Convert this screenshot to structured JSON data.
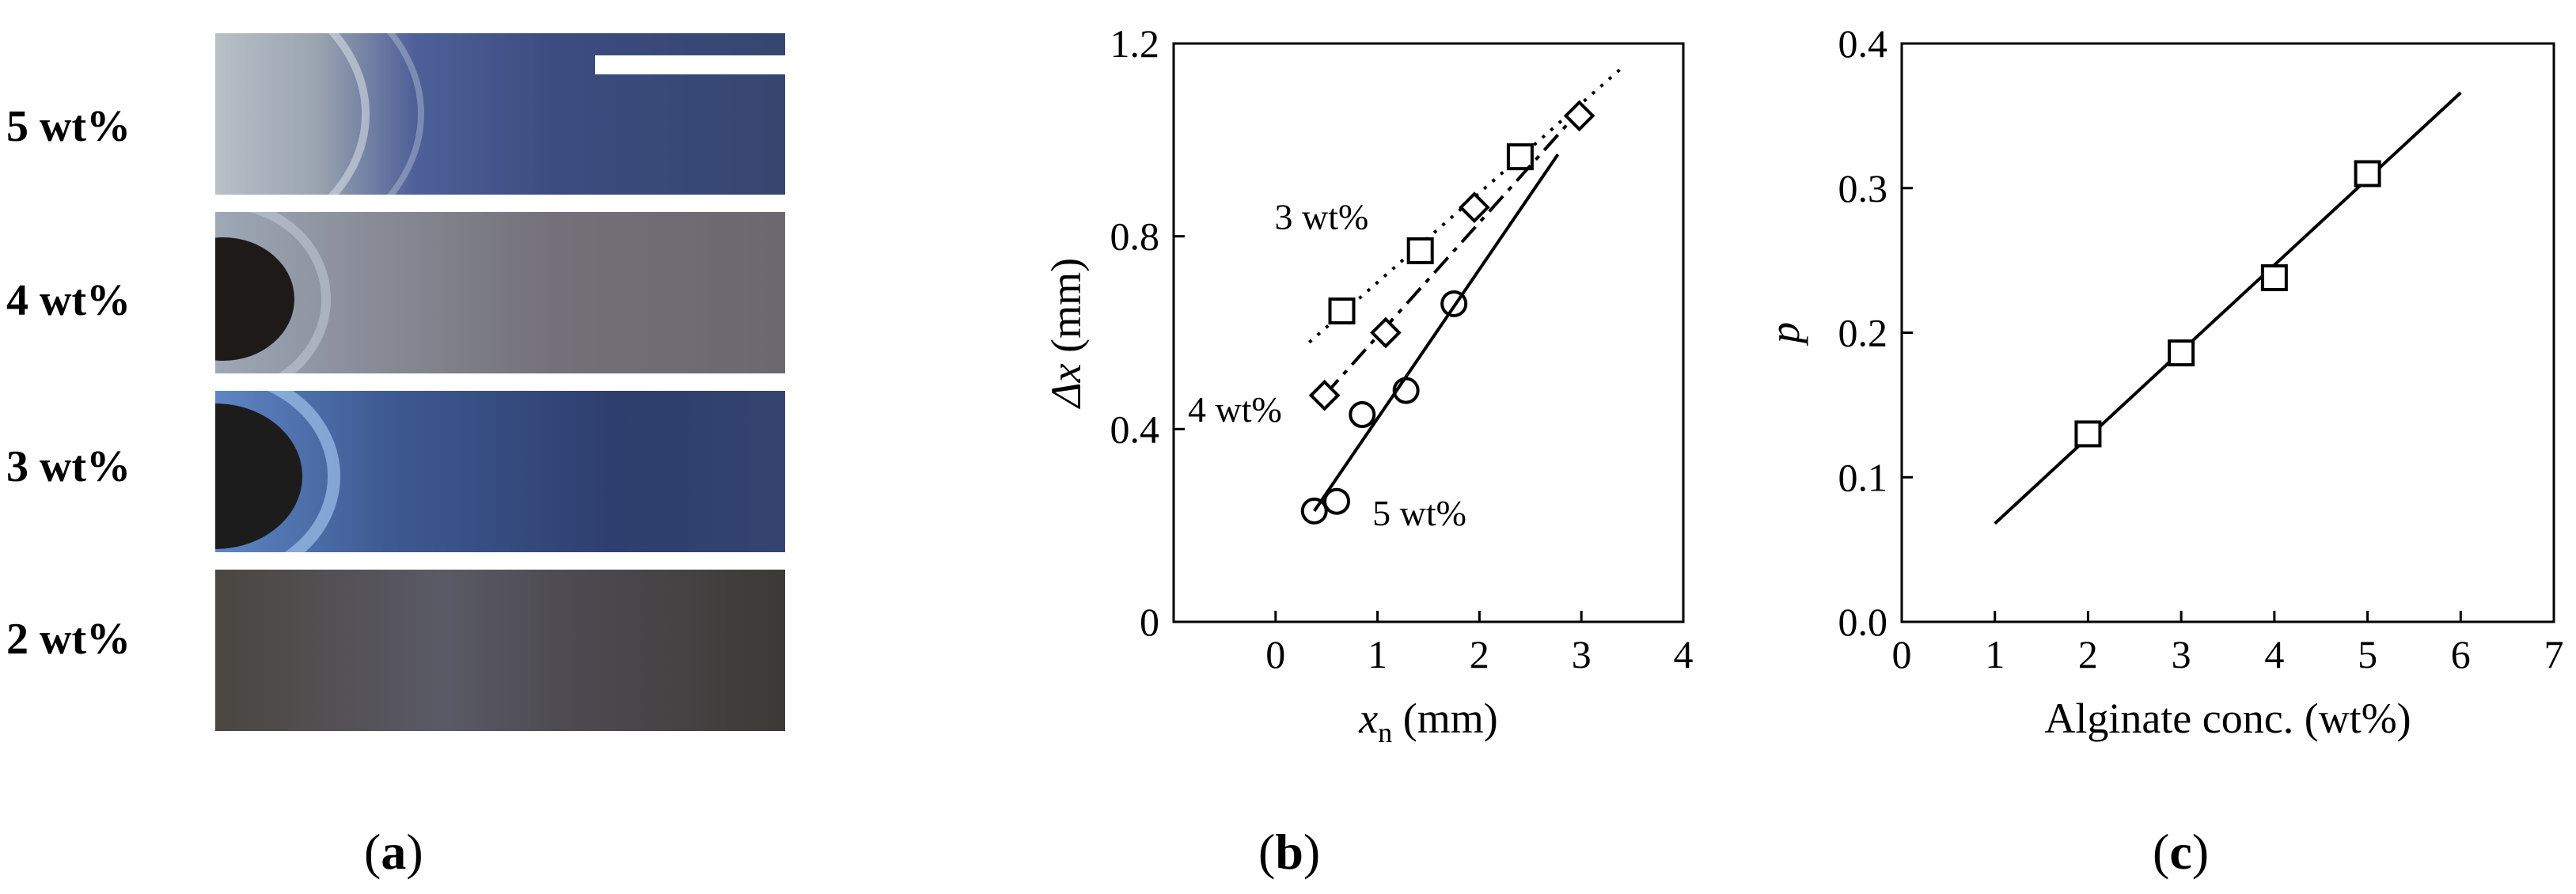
{
  "panel_a": {
    "rows": [
      "5 wt%",
      "4 wt%",
      "3 wt%",
      "2 wt%"
    ],
    "letter": "a",
    "colors": {
      "bg_blue": "#3a4a7a",
      "bg_gray": "#6a6870",
      "bg_dark": "#3e3a36",
      "highlight": "#8fb4e0"
    }
  },
  "chart_data": [
    {
      "type": "scatter",
      "panel": "b",
      "letter": "b",
      "xlabel_main": "x",
      "xlabel_sub": "n",
      "xlabel_unit": " (mm)",
      "ylabel_main": "Δx",
      "ylabel_unit": " (mm)",
      "xlim": [
        -1,
        4
      ],
      "ylim": [
        0,
        1.2
      ],
      "xticks": [
        "0",
        "1",
        "2",
        "3",
        "4"
      ],
      "xtick_values": [
        0,
        1,
        2,
        3,
        4
      ],
      "yticks": [
        "0",
        "0.4",
        "0.8",
        "1.2"
      ],
      "ytick_values": [
        0,
        0.4,
        0.8,
        1.2
      ],
      "series": [
        {
          "name": "3 wt%",
          "marker": "square",
          "line": "dotted",
          "x": [
            0.65,
            1.42,
            2.4
          ],
          "y": [
            0.645,
            0.77,
            0.965
          ],
          "fit": [
            [
              0.33,
              0.58
            ],
            [
              3.4,
              1.15
            ]
          ]
        },
        {
          "name": "4 wt%",
          "marker": "diamond",
          "line": "dashdot",
          "x": [
            0.48,
            1.08,
            1.95,
            2.98
          ],
          "y": [
            0.47,
            0.6,
            0.86,
            1.05
          ],
          "fit": [
            [
              0.48,
              0.47
            ],
            [
              2.98,
              1.06
            ]
          ]
        },
        {
          "name": "5 wt%",
          "marker": "circle",
          "line": "solid",
          "x": [
            0.38,
            0.6,
            0.85,
            1.28,
            1.75
          ],
          "y": [
            0.23,
            0.25,
            0.43,
            0.48,
            0.66
          ],
          "fit": [
            [
              0.38,
              0.23
            ],
            [
              2.77,
              0.97
            ]
          ]
        }
      ],
      "annotations": [
        {
          "text": "3 wt%",
          "x": -0.01,
          "y": 0.815
        },
        {
          "text": "4 wt%",
          "x": -0.86,
          "y": 0.415
        },
        {
          "text": "5 wt%",
          "x": 0.95,
          "y": 0.2
        }
      ]
    },
    {
      "type": "scatter",
      "panel": "c",
      "letter": "c",
      "xlabel": "Alginate conc. (wt%)",
      "ylabel": "p",
      "xlim": [
        0,
        7
      ],
      "ylim": [
        0,
        0.4
      ],
      "xticks": [
        "0",
        "1",
        "2",
        "3",
        "4",
        "5",
        "6",
        "7"
      ],
      "xtick_values": [
        0,
        1,
        2,
        3,
        4,
        5,
        6,
        7
      ],
      "yticks": [
        "0.0",
        "0.1",
        "0.2",
        "0.3",
        "0.4"
      ],
      "ytick_values": [
        0,
        0.1,
        0.2,
        0.3,
        0.4
      ],
      "series": [
        {
          "marker": "square",
          "line": "solid",
          "x": [
            2,
            3,
            4,
            5
          ],
          "y": [
            0.13,
            0.186,
            0.238,
            0.31
          ],
          "fit": [
            [
              1,
              0.068
            ],
            [
              6,
              0.366
            ]
          ]
        }
      ]
    }
  ]
}
